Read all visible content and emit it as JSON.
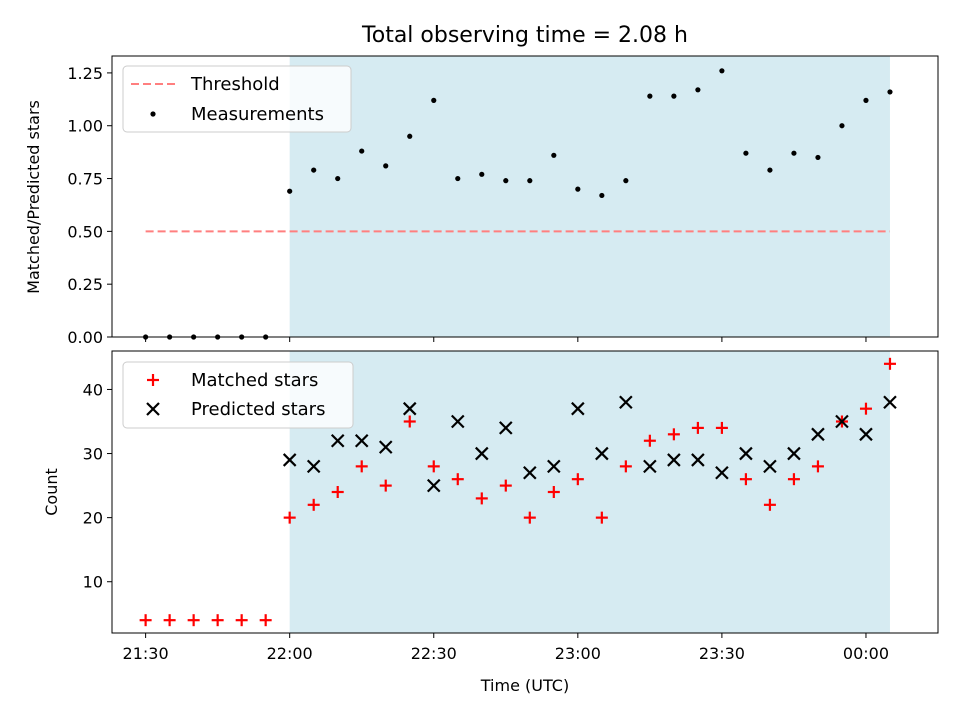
{
  "chart_data": {
    "title": "Total observing time = 2.08 h",
    "xlabel": "Time (UTC)",
    "x_tick_labels": [
      "21:30",
      "22:00",
      "22:30",
      "23:00",
      "23:30",
      "00:00"
    ],
    "x_ticks_minutes": [
      0,
      30,
      60,
      90,
      120,
      150
    ],
    "x_range_minutes": [
      -7,
      165
    ],
    "shaded_region_minutes": [
      30,
      155
    ],
    "shade_color": "#add8e6",
    "times_minutes": [
      0,
      5,
      10,
      15,
      20,
      25,
      30,
      35,
      40,
      45,
      50,
      55,
      60,
      65,
      70,
      75,
      80,
      85,
      90,
      95,
      100,
      105,
      110,
      115,
      120,
      125,
      130,
      135,
      140,
      145,
      150,
      155
    ],
    "panels": [
      {
        "type": "scatter",
        "ylabel": "Matched/Predicted stars",
        "ylim": [
          0,
          1.33
        ],
        "y_ticks": [
          "0.00",
          "0.25",
          "0.50",
          "0.75",
          "1.00",
          "1.25"
        ],
        "legend_position": "upper-left",
        "series": [
          {
            "name": "Threshold",
            "kind": "dashed-line",
            "color": "#ff7f7f",
            "x": [
              0,
              155
            ],
            "y": [
              0.5,
              0.5
            ]
          },
          {
            "name": "Measurements",
            "kind": "dot",
            "color": "#000000",
            "values": [
              0,
              0,
              0,
              0,
              0,
              0,
              0.69,
              0.79,
              0.75,
              0.88,
              0.81,
              0.95,
              1.12,
              0.75,
              0.77,
              0.74,
              0.74,
              0.86,
              0.7,
              0.67,
              0.74,
              1.14,
              1.14,
              1.17,
              1.26,
              0.87,
              0.79,
              0.87,
              0.85,
              1.0,
              1.12,
              1.16
            ]
          }
        ]
      },
      {
        "type": "scatter",
        "ylabel": "Count",
        "ylim": [
          2,
          46
        ],
        "y_ticks": [
          "10",
          "20",
          "30",
          "40"
        ],
        "legend_position": "upper-left",
        "series": [
          {
            "name": "Matched stars",
            "kind": "plus",
            "color": "#ff0000",
            "values": [
              4,
              4,
              4,
              4,
              4,
              4,
              20,
              22,
              24,
              28,
              25,
              35,
              28,
              26,
              23,
              25,
              20,
              24,
              26,
              20,
              28,
              32,
              33,
              34,
              34,
              26,
              22,
              26,
              28,
              35,
              37,
              44
            ]
          },
          {
            "name": "Predicted stars",
            "kind": "x",
            "color": "#000000",
            "values": [
              null,
              null,
              null,
              null,
              null,
              null,
              29,
              28,
              32,
              32,
              31,
              37,
              25,
              35,
              30,
              34,
              27,
              28,
              37,
              30,
              38,
              28,
              29,
              29,
              27,
              30,
              28,
              30,
              33,
              35,
              33,
              38
            ]
          }
        ]
      }
    ]
  }
}
